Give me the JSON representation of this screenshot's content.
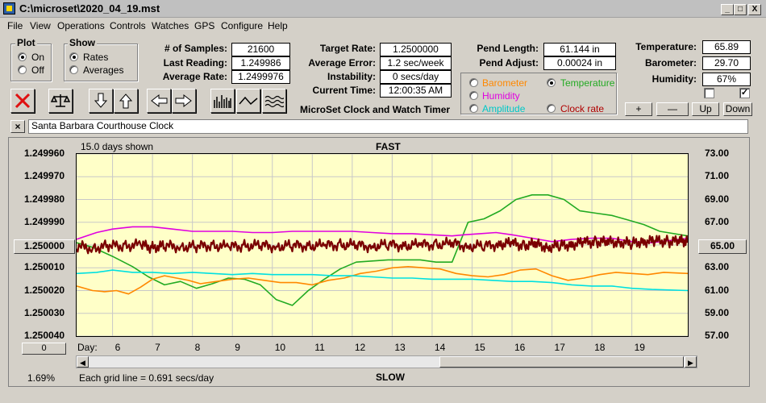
{
  "window": {
    "title": "C:\\microset\\2020_04_19.mst",
    "min": "_",
    "max": "□",
    "close": "X"
  },
  "menu": [
    "File",
    "View",
    "Operations",
    "Controls",
    "Watches",
    "GPS",
    "Configure",
    "Help"
  ],
  "plot_group": {
    "title": "Plot",
    "on": "On",
    "off": "Off",
    "selected": "On"
  },
  "show_group": {
    "title": "Show",
    "rates": "Rates",
    "averages": "Averages",
    "selected": "Rates"
  },
  "stats": {
    "samples_label": "# of Samples:",
    "samples": "21600",
    "last_label": "Last Reading:",
    "last": "1.249986",
    "avg_label": "Average Rate:",
    "avg": "1.2499976"
  },
  "rates": {
    "target_label": "Target Rate:",
    "target": "1.2500000",
    "error_label": "Average Error:",
    "error": "1.2 sec/week",
    "instab_label": "Instability:",
    "instab": "0 secs/day",
    "time_label": "Current Time:",
    "time": "12:00:35 AM"
  },
  "app_caption": "MicroSet Clock and Watch Timer",
  "pend": {
    "length_label": "Pend Length:",
    "length": "61.144 in",
    "adjust_label": "Pend Adjust:",
    "adjust": "0.00024 in"
  },
  "sensor_options": {
    "barometer": "Barometer",
    "temperature": "Temperature",
    "humidity": "Humidity",
    "amplitude": "Amplitude",
    "clock_rate": "Clock rate",
    "selected": "Temperature"
  },
  "env": {
    "temp_label": "Temperature:",
    "temp": "65.89",
    "baro_label": "Barometer:",
    "baro": "29.70",
    "hum_label": "Humidity:",
    "hum": "67%",
    "checkbox1": false,
    "checkbox2": true
  },
  "env_buttons": {
    "plus": "+",
    "minus": "—",
    "up": "Up",
    "down": "Down"
  },
  "clock_name": "Santa Barbara Courthouse Clock",
  "clear_btn": "×",
  "colors": {
    "rate": "#7a0000",
    "temperature": "#22aa22",
    "barometer": "#ff8800",
    "humidity": "#e000e0",
    "amplitude": "#00e0e0",
    "clock_rate": "#000000",
    "plot_bg": "#ffffc8"
  },
  "chart_data": {
    "type": "line",
    "title": "FAST",
    "bottom_title": "SLOW",
    "days_shown": "15.0 days shown",
    "grid_note": "Each grid line = 0.691 secs/day",
    "scale_note": "1.69%",
    "xlabel": "Day:",
    "x_ticks": [
      "6",
      "7",
      "8",
      "9",
      "10",
      "11",
      "12",
      "13",
      "14",
      "15",
      "16",
      "17",
      "18",
      "19"
    ],
    "x_range": [
      5.1,
      20.4
    ],
    "y_left_ticks": [
      "1.249960",
      "1.249970",
      "1.249980",
      "1.249990",
      "1.250000",
      "1.250010",
      "1.250020",
      "1.250030",
      "1.250040"
    ],
    "y_left_center": "1.250000",
    "y_left_range": [
      1.24996,
      1.25004
    ],
    "y_right_ticks": [
      "73.00",
      "71.00",
      "69.00",
      "67.00",
      "65.00",
      "63.00",
      "61.00",
      "59.00",
      "57.00"
    ],
    "y_right_center": "65.00",
    "y_right_range": [
      57.0,
      73.0
    ],
    "left_spinner": "0",
    "series": [
      {
        "name": "Temperature",
        "color": "#22aa22",
        "axis": "right",
        "x": [
          5.1,
          5.5,
          6.0,
          6.5,
          6.9,
          7.3,
          7.7,
          8.1,
          8.5,
          8.9,
          9.3,
          9.7,
          10.1,
          10.5,
          10.9,
          11.3,
          11.7,
          12.1,
          12.5,
          12.9,
          13.3,
          13.7,
          14.1,
          14.5,
          14.9,
          15.3,
          15.7,
          16.1,
          16.5,
          16.9,
          17.3,
          17.7,
          18.1,
          18.5,
          18.9,
          19.3,
          19.7,
          20.4
        ],
        "y": [
          65.2,
          64.8,
          64.0,
          63.1,
          62.2,
          61.5,
          61.8,
          61.2,
          61.6,
          62.1,
          62.0,
          61.5,
          60.2,
          59.7,
          61.0,
          62.0,
          62.9,
          63.5,
          63.6,
          63.7,
          63.7,
          63.7,
          63.5,
          63.5,
          67.0,
          67.3,
          68.0,
          69.0,
          69.4,
          69.4,
          69.0,
          68.0,
          67.8,
          67.6,
          67.2,
          66.8,
          66.2,
          65.8
        ]
      },
      {
        "name": "Humidity",
        "color": "#e000e0",
        "axis": "right",
        "x": [
          5.1,
          5.6,
          6.0,
          6.5,
          7.0,
          7.5,
          8.0,
          8.5,
          9.0,
          9.5,
          10.0,
          10.5,
          11.0,
          11.5,
          12.0,
          12.5,
          13.0,
          13.5,
          14.0,
          14.5,
          14.8,
          15.2,
          15.6,
          16.0,
          16.5,
          17.0,
          17.5,
          18.0,
          18.5,
          19.0,
          19.5,
          20.4
        ],
        "y": [
          65.5,
          66.1,
          66.4,
          66.6,
          66.6,
          66.4,
          66.2,
          66.2,
          66.2,
          66.1,
          66.1,
          66.2,
          66.2,
          66.2,
          66.2,
          66.1,
          66.0,
          66.0,
          65.9,
          65.8,
          65.9,
          66.0,
          66.1,
          65.9,
          65.6,
          65.3,
          65.5,
          65.6,
          65.6,
          65.3,
          65.2,
          65.6
        ]
      },
      {
        "name": "Barometer",
        "color": "#ff8800",
        "axis": "right",
        "x": [
          5.1,
          5.5,
          5.8,
          6.1,
          6.4,
          6.7,
          7.0,
          7.3,
          7.6,
          7.9,
          8.2,
          8.6,
          9.0,
          9.4,
          9.8,
          10.2,
          10.6,
          11.0,
          11.4,
          11.8,
          12.2,
          12.6,
          13.0,
          13.4,
          13.8,
          14.2,
          14.6,
          15.0,
          15.4,
          15.8,
          16.2,
          16.6,
          17.0,
          17.4,
          17.8,
          18.2,
          18.6,
          19.0,
          19.4,
          19.8,
          20.4
        ],
        "y": [
          61.4,
          61.0,
          60.9,
          61.0,
          60.7,
          61.3,
          62.0,
          62.3,
          62.1,
          61.9,
          61.6,
          61.8,
          62.0,
          62.1,
          61.9,
          61.7,
          61.7,
          61.5,
          61.9,
          62.1,
          62.5,
          62.7,
          63.0,
          63.1,
          63.0,
          62.9,
          62.5,
          62.3,
          62.2,
          62.4,
          62.8,
          62.9,
          62.3,
          61.9,
          62.1,
          62.4,
          62.6,
          62.5,
          62.4,
          62.6,
          62.5
        ]
      },
      {
        "name": "Amplitude",
        "color": "#00e0e0",
        "axis": "right",
        "x": [
          5.1,
          5.6,
          6.0,
          6.5,
          7.0,
          7.5,
          8.0,
          8.5,
          9.0,
          9.5,
          10.0,
          10.5,
          11.0,
          11.5,
          12.0,
          12.5,
          13.0,
          13.5,
          14.0,
          14.5,
          15.0,
          15.5,
          16.0,
          16.5,
          17.0,
          17.5,
          18.0,
          18.5,
          19.0,
          19.5,
          20.4
        ],
        "y": [
          62.5,
          62.6,
          62.8,
          62.6,
          62.6,
          62.5,
          62.6,
          62.5,
          62.4,
          62.5,
          62.4,
          62.4,
          62.4,
          62.3,
          62.3,
          62.2,
          62.1,
          62.1,
          62.0,
          62.0,
          62.0,
          61.9,
          61.8,
          61.8,
          61.7,
          61.5,
          61.4,
          61.4,
          61.2,
          61.1,
          61.0
        ]
      },
      {
        "name": "Rate",
        "color": "#7a0000",
        "axis": "left",
        "x": [
          5.1,
          5.5,
          5.9,
          6.3,
          6.7,
          7.0,
          7.3,
          7.7,
          8.1,
          8.5,
          8.9,
          9.3,
          9.7,
          10.1,
          10.5,
          10.9,
          11.3,
          11.7,
          12.1,
          12.5,
          12.9,
          13.3,
          13.7,
          14.1,
          14.5,
          14.9,
          15.3,
          15.7,
          16.0,
          16.3,
          16.6,
          16.9,
          17.2,
          17.5,
          17.8,
          18.1,
          18.4,
          18.7,
          19.0,
          19.3,
          19.6,
          19.9,
          20.2,
          20.4
        ],
        "y": [
          1.2500005,
          1.2500015,
          1.2500002,
          1.2500005,
          1.2499998,
          1.2500012,
          1.2500003,
          1.2500008,
          1.2500006,
          1.2500002,
          1.2500008,
          1.2500004,
          1.2500001,
          1.2500007,
          1.2500002,
          1.2500004,
          1.2500002,
          1.2499999,
          1.2500001,
          1.2500006,
          1.2499998,
          1.2500003,
          1.2499999,
          1.2499998,
          1.2499993,
          1.2500006,
          1.2500004,
          1.2499997,
          1.2499992,
          1.2500002,
          1.2499996,
          1.250001,
          1.2500002,
          1.2499998,
          1.2499988,
          1.2499986,
          1.2499988,
          1.2499987,
          1.2499993,
          1.2499984,
          1.2499982,
          1.2499985,
          1.2499982,
          1.2499986
        ]
      }
    ]
  }
}
